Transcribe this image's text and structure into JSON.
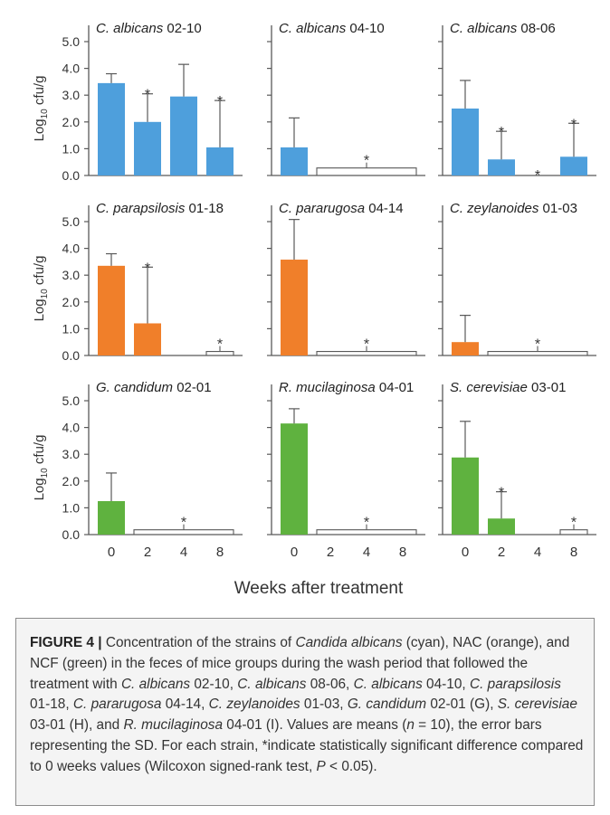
{
  "figure": {
    "y_axis_label_main": "Log",
    "y_axis_label_sub": "10",
    "y_axis_label_tail": " cfu/g",
    "x_axis_title": "Weeks after treatment",
    "sig_symbol": "*"
  },
  "colors": {
    "blue": "#4e9fdc",
    "orange": "#f07f2a",
    "green": "#5fb23f",
    "axis": "#595959"
  },
  "chart_data": [
    {
      "type": "bar",
      "species": "C. albicans",
      "strain": "02-10",
      "color": "blue",
      "categories": [
        "0",
        "2",
        "4",
        "8"
      ],
      "values": [
        3.45,
        2.0,
        2.95,
        1.05
      ],
      "errors": [
        0.35,
        1.05,
        1.2,
        1.75
      ],
      "significant": [
        false,
        true,
        false,
        true
      ],
      "pooled_bracket": null,
      "ylim": [
        0,
        5.0
      ],
      "yticks": [
        "5.0",
        "4.0",
        "3.0",
        "2.0",
        "1.0",
        "0.0"
      ]
    },
    {
      "type": "bar",
      "species": "C. albicans",
      "strain": "04-10",
      "color": "blue",
      "categories": [
        "0",
        "2",
        "4",
        "8"
      ],
      "values": [
        1.05,
        0,
        0,
        0
      ],
      "errors": [
        1.1,
        0,
        0,
        0
      ],
      "significant": [
        false,
        false,
        false,
        false
      ],
      "pooled_bracket": {
        "value": 0.28,
        "significant": true
      },
      "ylim": [
        0,
        5.0
      ]
    },
    {
      "type": "bar",
      "species": "C. albicans",
      "strain": "08-06",
      "color": "blue",
      "categories": [
        "0",
        "2",
        "4",
        "8"
      ],
      "values": [
        2.5,
        0.6,
        0,
        0.7
      ],
      "errors": [
        1.05,
        1.05,
        0,
        1.25
      ],
      "significant": [
        false,
        true,
        true,
        true
      ],
      "pooled_bracket": null,
      "ylim": [
        0,
        5.0
      ]
    },
    {
      "type": "bar",
      "species": "C. parapsilosis",
      "strain": "01-18",
      "color": "orange",
      "categories": [
        "0",
        "2",
        "4",
        "8"
      ],
      "values": [
        3.35,
        1.2,
        0,
        0
      ],
      "errors": [
        0.45,
        2.1,
        0,
        0
      ],
      "significant": [
        false,
        true,
        false,
        false
      ],
      "pooled_bracket": {
        "bars": [
          3
        ],
        "value": 0.15,
        "significant": true
      },
      "ylim": [
        0,
        5.0
      ],
      "yticks": [
        "5.0",
        "4.0",
        "3.0",
        "2.0",
        "1.0",
        "0.0"
      ]
    },
    {
      "type": "bar",
      "species": "C. pararugosa",
      "strain": "04-14",
      "color": "orange",
      "categories": [
        "0",
        "2",
        "4",
        "8"
      ],
      "values": [
        3.58,
        0,
        0,
        0
      ],
      "errors": [
        1.5,
        0,
        0,
        0
      ],
      "significant": [
        false,
        false,
        false,
        false
      ],
      "pooled_bracket": {
        "value": 0.15,
        "significant": true
      },
      "ylim": [
        0,
        5.0
      ]
    },
    {
      "type": "bar",
      "species": "C. zeylanoides",
      "strain": "01-03",
      "color": "orange",
      "categories": [
        "0",
        "2",
        "4",
        "8"
      ],
      "values": [
        0.5,
        0,
        0,
        0
      ],
      "errors": [
        1.0,
        0,
        0,
        0
      ],
      "significant": [
        false,
        false,
        false,
        false
      ],
      "pooled_bracket": {
        "value": 0.15,
        "significant": true
      },
      "ylim": [
        0,
        5.0
      ]
    },
    {
      "type": "bar",
      "species": "G. candidum",
      "strain": "02-01",
      "color": "green",
      "categories": [
        "0",
        "2",
        "4",
        "8"
      ],
      "values": [
        1.25,
        0,
        0,
        0
      ],
      "errors": [
        1.05,
        0,
        0,
        0
      ],
      "significant": [
        false,
        false,
        false,
        false
      ],
      "pooled_bracket": {
        "value": 0.18,
        "significant": true
      },
      "ylim": [
        0,
        5.0
      ],
      "yticks": [
        "5.0",
        "4.0",
        "3.0",
        "2.0",
        "1.0",
        "0.0"
      ],
      "xticks": [
        "0",
        "2",
        "4",
        "8"
      ]
    },
    {
      "type": "bar",
      "species": "R. mucilaginosa",
      "strain": "04-01",
      "color": "green",
      "categories": [
        "0",
        "2",
        "4",
        "8"
      ],
      "values": [
        4.15,
        0,
        0,
        0
      ],
      "errors": [
        0.55,
        0,
        0,
        0
      ],
      "significant": [
        false,
        false,
        false,
        false
      ],
      "pooled_bracket": {
        "value": 0.18,
        "significant": true
      },
      "ylim": [
        0,
        5.0
      ],
      "xticks": [
        "0",
        "2",
        "4",
        "8"
      ]
    },
    {
      "type": "bar",
      "species": "S. cerevisiae",
      "strain": "03-01",
      "color": "green",
      "categories": [
        "0",
        "2",
        "4",
        "8"
      ],
      "values": [
        2.88,
        0.6,
        0,
        0
      ],
      "errors": [
        1.35,
        1.0,
        0,
        0
      ],
      "significant": [
        false,
        true,
        false,
        false
      ],
      "pooled_bracket": {
        "bars": [
          3
        ],
        "value": 0.18,
        "significant": true
      },
      "ylim": [
        0,
        5.0
      ],
      "xticks": [
        "0",
        "2",
        "4",
        "8"
      ]
    }
  ],
  "caption": {
    "label": "FIGURE 4 |",
    "segments": [
      {
        "t": " Concentration of the strains of ",
        "i": false
      },
      {
        "t": "Candida albicans",
        "i": true
      },
      {
        "t": " (cyan), NAC (orange), and NCF (green) in the feces of mice groups during the wash period that followed the treatment with ",
        "i": false
      },
      {
        "t": "C. albicans",
        "i": true
      },
      {
        "t": " 02-10, ",
        "i": false
      },
      {
        "t": "C. albicans",
        "i": true
      },
      {
        "t": " 08-06, ",
        "i": false
      },
      {
        "t": "C. albicans",
        "i": true
      },
      {
        "t": " 04-10, ",
        "i": false
      },
      {
        "t": "C. parapsilosis",
        "i": true
      },
      {
        "t": " 01-18, ",
        "i": false
      },
      {
        "t": "C. pararugosa",
        "i": true
      },
      {
        "t": " 04-14, ",
        "i": false
      },
      {
        "t": "C. zeylanoides",
        "i": true
      },
      {
        "t": " 01-03, ",
        "i": false
      },
      {
        "t": "G. candidum",
        "i": true
      },
      {
        "t": " 02-01 (G), ",
        "i": false
      },
      {
        "t": "S. cerevisiae",
        "i": true
      },
      {
        "t": " 03-01 (H), and ",
        "i": false
      },
      {
        "t": "R. mucilaginosa",
        "i": true
      },
      {
        "t": " 04-01 (I). Values are means (",
        "i": false
      },
      {
        "t": "n",
        "i": true
      },
      {
        "t": " = 10), the error bars representing the SD. For each strain, *indicate statistically significant difference compared to 0 weeks values (Wilcoxon signed-rank test, ",
        "i": false
      },
      {
        "t": "P",
        "i": true
      },
      {
        "t": " < 0.05).",
        "i": false
      }
    ]
  }
}
